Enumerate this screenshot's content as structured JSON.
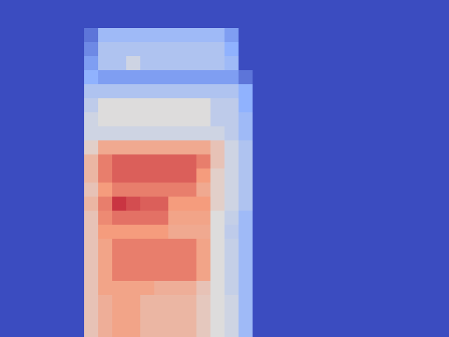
{
  "chart_data": {
    "type": "heatmap",
    "tick_labels": false,
    "zlim": [
      0,
      1
    ],
    "cells": [
      [
        0,
        0,
        0,
        0,
        0,
        0,
        0,
        0,
        0,
        0,
        0,
        0,
        0,
        0,
        0,
        0,
        0,
        0,
        0,
        0,
        0,
        0,
        0,
        0,
        0,
        0,
        0,
        0,
        0,
        0,
        0,
        0
      ],
      [
        0,
        0,
        0,
        0,
        0,
        0,
        0,
        0,
        0,
        0,
        0,
        0,
        0,
        0,
        0,
        0,
        0,
        0,
        0,
        0,
        0,
        0,
        0,
        0,
        0,
        0,
        0,
        0,
        0,
        0,
        0,
        0
      ],
      [
        0,
        0,
        0,
        0,
        0,
        0,
        0.1,
        0.3,
        0.3,
        0.3,
        0.3,
        0.3,
        0.3,
        0.3,
        0.3,
        0.3,
        0.2,
        0,
        0,
        0,
        0,
        0,
        0,
        0,
        0,
        0,
        0,
        0,
        0,
        0,
        0,
        0
      ],
      [
        0,
        0,
        0,
        0,
        0,
        0,
        0.15,
        0.35,
        0.35,
        0.35,
        0.35,
        0.35,
        0.35,
        0.35,
        0.35,
        0.35,
        0.25,
        0,
        0,
        0,
        0,
        0,
        0,
        0,
        0,
        0,
        0,
        0,
        0,
        0,
        0,
        0
      ],
      [
        0,
        0,
        0,
        0,
        0,
        0,
        0.2,
        0.35,
        0.35,
        0.45,
        0.35,
        0.35,
        0.35,
        0.35,
        0.35,
        0.35,
        0.3,
        0,
        0,
        0,
        0,
        0,
        0,
        0,
        0,
        0,
        0,
        0,
        0,
        0,
        0,
        0
      ],
      [
        0,
        0,
        0,
        0,
        0,
        0,
        0.25,
        0.2,
        0.2,
        0.2,
        0.2,
        0.2,
        0.2,
        0.2,
        0.2,
        0.2,
        0.2,
        0.1,
        0,
        0,
        0,
        0,
        0,
        0,
        0,
        0,
        0,
        0,
        0,
        0,
        0,
        0
      ],
      [
        0,
        0,
        0,
        0,
        0,
        0,
        0.35,
        0.35,
        0.35,
        0.35,
        0.35,
        0.35,
        0.35,
        0.35,
        0.35,
        0.35,
        0.35,
        0.25,
        0,
        0,
        0,
        0,
        0,
        0,
        0,
        0,
        0,
        0,
        0,
        0,
        0,
        0
      ],
      [
        0,
        0,
        0,
        0,
        0,
        0,
        0.4,
        0.5,
        0.5,
        0.5,
        0.5,
        0.5,
        0.5,
        0.5,
        0.5,
        0.4,
        0.4,
        0.25,
        0,
        0,
        0,
        0,
        0,
        0,
        0,
        0,
        0,
        0,
        0,
        0,
        0,
        0
      ],
      [
        0,
        0,
        0,
        0,
        0,
        0,
        0.45,
        0.5,
        0.5,
        0.5,
        0.5,
        0.5,
        0.5,
        0.5,
        0.5,
        0.4,
        0.4,
        0.3,
        0,
        0,
        0,
        0,
        0,
        0,
        0,
        0,
        0,
        0,
        0,
        0,
        0,
        0
      ],
      [
        0,
        0,
        0,
        0,
        0,
        0,
        0.45,
        0.45,
        0.45,
        0.45,
        0.45,
        0.45,
        0.45,
        0.45,
        0.45,
        0.45,
        0.4,
        0.3,
        0,
        0,
        0,
        0,
        0,
        0,
        0,
        0,
        0,
        0,
        0,
        0,
        0,
        0
      ],
      [
        0,
        0,
        0,
        0,
        0,
        0,
        0.55,
        0.7,
        0.7,
        0.7,
        0.7,
        0.7,
        0.7,
        0.7,
        0.7,
        0.6,
        0.45,
        0.35,
        0,
        0,
        0,
        0,
        0,
        0,
        0,
        0,
        0,
        0,
        0,
        0,
        0,
        0
      ],
      [
        0,
        0,
        0,
        0,
        0,
        0,
        0.65,
        0.8,
        0.85,
        0.85,
        0.85,
        0.85,
        0.85,
        0.85,
        0.8,
        0.6,
        0.45,
        0.35,
        0,
        0,
        0,
        0,
        0,
        0,
        0,
        0,
        0,
        0,
        0,
        0,
        0,
        0
      ],
      [
        0,
        0,
        0,
        0,
        0,
        0,
        0.65,
        0.8,
        0.85,
        0.85,
        0.85,
        0.85,
        0.85,
        0.85,
        0.75,
        0.55,
        0.45,
        0.35,
        0,
        0,
        0,
        0,
        0,
        0,
        0,
        0,
        0,
        0,
        0,
        0,
        0,
        0
      ],
      [
        0,
        0,
        0,
        0,
        0,
        0,
        0.6,
        0.75,
        0.8,
        0.8,
        0.8,
        0.8,
        0.8,
        0.8,
        0.7,
        0.55,
        0.45,
        0.35,
        0,
        0,
        0,
        0,
        0,
        0,
        0,
        0,
        0,
        0,
        0,
        0,
        0,
        0
      ],
      [
        0,
        0,
        0,
        0,
        0,
        0,
        0.65,
        0.8,
        0.92,
        0.88,
        0.85,
        0.85,
        0.75,
        0.75,
        0.75,
        0.55,
        0.45,
        0.35,
        0,
        0,
        0,
        0,
        0,
        0,
        0,
        0,
        0,
        0,
        0,
        0,
        0,
        0
      ],
      [
        0,
        0,
        0,
        0,
        0,
        0,
        0.6,
        0.78,
        0.82,
        0.82,
        0.82,
        0.82,
        0.72,
        0.72,
        0.72,
        0.5,
        0.42,
        0.3,
        0,
        0,
        0,
        0,
        0,
        0,
        0,
        0,
        0,
        0,
        0,
        0,
        0,
        0
      ],
      [
        0,
        0,
        0,
        0,
        0,
        0,
        0.6,
        0.75,
        0.75,
        0.75,
        0.75,
        0.75,
        0.7,
        0.7,
        0.7,
        0.5,
        0.4,
        0.3,
        0,
        0,
        0,
        0,
        0,
        0,
        0,
        0,
        0,
        0,
        0,
        0,
        0,
        0
      ],
      [
        0,
        0,
        0,
        0,
        0,
        0,
        0.6,
        0.72,
        0.8,
        0.8,
        0.8,
        0.8,
        0.8,
        0.8,
        0.72,
        0.5,
        0.42,
        0.3,
        0,
        0,
        0,
        0,
        0,
        0,
        0,
        0,
        0,
        0,
        0,
        0,
        0,
        0
      ],
      [
        0,
        0,
        0,
        0,
        0,
        0,
        0.6,
        0.72,
        0.8,
        0.8,
        0.8,
        0.8,
        0.8,
        0.8,
        0.72,
        0.5,
        0.42,
        0.3,
        0,
        0,
        0,
        0,
        0,
        0,
        0,
        0,
        0,
        0,
        0,
        0,
        0,
        0
      ],
      [
        0,
        0,
        0,
        0,
        0,
        0,
        0.6,
        0.72,
        0.8,
        0.8,
        0.8,
        0.8,
        0.8,
        0.8,
        0.72,
        0.5,
        0.42,
        0.3,
        0,
        0,
        0,
        0,
        0,
        0,
        0,
        0,
        0,
        0,
        0,
        0,
        0,
        0
      ],
      [
        0,
        0,
        0,
        0,
        0,
        0,
        0.6,
        0.72,
        0.72,
        0.72,
        0.72,
        0.68,
        0.68,
        0.68,
        0.6,
        0.5,
        0.42,
        0.3,
        0,
        0,
        0,
        0,
        0,
        0,
        0,
        0,
        0,
        0,
        0,
        0,
        0,
        0
      ],
      [
        0,
        0,
        0,
        0,
        0,
        0,
        0.6,
        0.68,
        0.72,
        0.72,
        0.65,
        0.65,
        0.65,
        0.65,
        0.58,
        0.5,
        0.45,
        0.3,
        0,
        0,
        0,
        0,
        0,
        0,
        0,
        0,
        0,
        0,
        0,
        0,
        0,
        0
      ],
      [
        0,
        0,
        0,
        0,
        0,
        0,
        0.6,
        0.68,
        0.72,
        0.72,
        0.65,
        0.65,
        0.65,
        0.65,
        0.58,
        0.5,
        0.45,
        0.3,
        0,
        0,
        0,
        0,
        0,
        0,
        0,
        0,
        0,
        0,
        0,
        0,
        0,
        0
      ],
      [
        0,
        0,
        0,
        0,
        0,
        0,
        0.6,
        0.68,
        0.72,
        0.72,
        0.65,
        0.65,
        0.65,
        0.65,
        0.58,
        0.5,
        0.45,
        0.3,
        0,
        0,
        0,
        0,
        0,
        0,
        0,
        0,
        0,
        0,
        0,
        0,
        0,
        0
      ]
    ]
  }
}
